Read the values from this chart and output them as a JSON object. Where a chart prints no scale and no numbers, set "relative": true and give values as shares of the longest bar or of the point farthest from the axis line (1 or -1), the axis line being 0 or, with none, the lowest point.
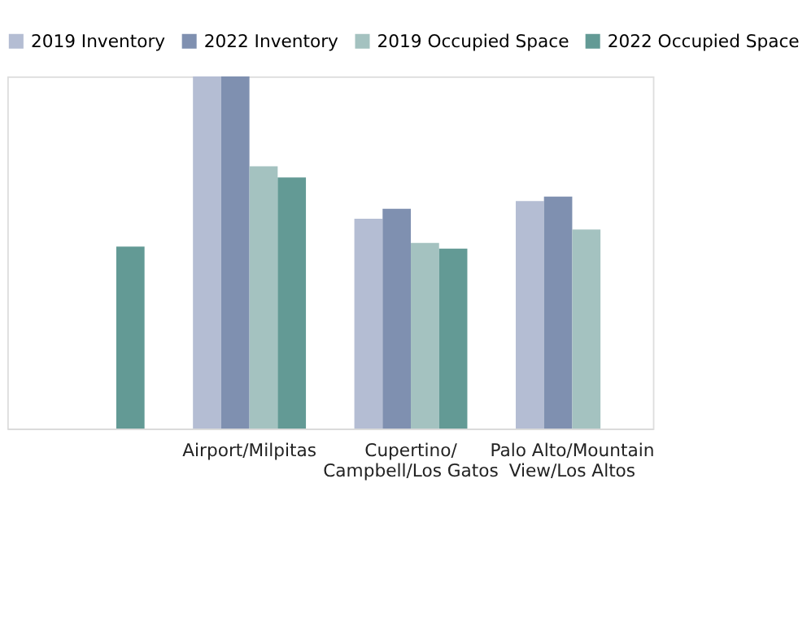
{
  "chart_data": {
    "type": "bar",
    "relative": true,
    "categories": [
      null,
      "Airport/Milpitas",
      "Cupertino/Campbell/Los Gatos",
      "Palo Alto/Mountain View/Los Altos"
    ],
    "series": [
      {
        "name": "2019 Inventory",
        "color": "#b4bdd3",
        "values": [
          null,
          1.0,
          0.596,
          0.646
        ]
      },
      {
        "name": "2022 Inventory",
        "color": "#7f90b0",
        "values": [
          null,
          1.0,
          0.624,
          0.659
        ]
      },
      {
        "name": "2019 Occupied Space",
        "color": "#a4c2c0",
        "values": [
          null,
          0.745,
          0.527,
          0.565
        ]
      },
      {
        "name": "2022 Occupied Space",
        "color": "#639a95",
        "values": [
          0.517,
          0.713,
          0.511,
          null
        ]
      }
    ],
    "legend": "top",
    "grid": false
  }
}
